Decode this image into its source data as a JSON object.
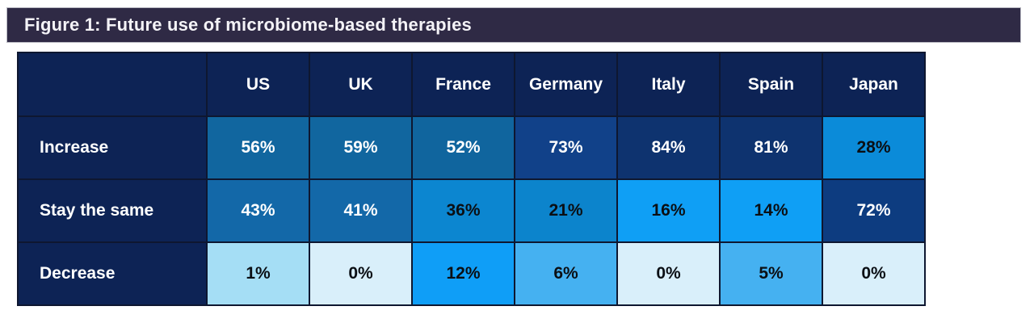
{
  "figure": {
    "title": "Figure 1: Future use of microbiome-based therapies"
  },
  "colors": {
    "title_bar_bg": "#2f2a45",
    "title_bar_border": "#b9b9c2",
    "title_text": "#f4f3f7",
    "table_header_bg": "#0d2355",
    "grid_line": "#0e1730",
    "value_text_light": "#ffffff",
    "value_text_dark": "#0b0f14",
    "page_bg": "#ffffff"
  },
  "chart_data": {
    "type": "heatmap",
    "title": "Figure 1: Future use of microbiome-based therapies",
    "unit": "%",
    "legend": "none",
    "columns": [
      "US",
      "UK",
      "France",
      "Germany",
      "Italy",
      "Spain",
      "Japan"
    ],
    "rows": [
      "Increase",
      "Stay the same",
      "Decrease"
    ],
    "values": [
      [
        56,
        59,
        52,
        73,
        84,
        81,
        28
      ],
      [
        43,
        41,
        36,
        21,
        16,
        14,
        72
      ],
      [
        1,
        0,
        12,
        6,
        0,
        5,
        0
      ]
    ],
    "color_scale": {
      "low_value_color": "#d9effa",
      "high_value_color": "#0e336f",
      "note": "darker blue = higher percentage"
    },
    "cells": [
      [
        {
          "label": "56%",
          "bg": "#11669f",
          "fg": "#ffffff"
        },
        {
          "label": "59%",
          "bg": "#11669f",
          "fg": "#ffffff"
        },
        {
          "label": "52%",
          "bg": "#10659e",
          "fg": "#ffffff"
        },
        {
          "label": "73%",
          "bg": "#114189",
          "fg": "#ffffff"
        },
        {
          "label": "84%",
          "bg": "#0e336f",
          "fg": "#ffffff"
        },
        {
          "label": "81%",
          "bg": "#0e336f",
          "fg": "#ffffff"
        },
        {
          "label": "28%",
          "bg": "#0b8bd9",
          "fg": "#0b0f14"
        }
      ],
      [
        {
          "label": "43%",
          "bg": "#1368a8",
          "fg": "#ffffff"
        },
        {
          "label": "41%",
          "bg": "#1368a8",
          "fg": "#ffffff"
        },
        {
          "label": "36%",
          "bg": "#0c86d0",
          "fg": "#0b0f14"
        },
        {
          "label": "21%",
          "bg": "#0c84cc",
          "fg": "#0b0f14"
        },
        {
          "label": "16%",
          "bg": "#0f9ff5",
          "fg": "#0b0f14"
        },
        {
          "label": "14%",
          "bg": "#0f9ff5",
          "fg": "#0b0f14"
        },
        {
          "label": "72%",
          "bg": "#0d3c80",
          "fg": "#ffffff"
        }
      ],
      [
        {
          "label": "1%",
          "bg": "#a5def5",
          "fg": "#0b0f14"
        },
        {
          "label": "0%",
          "bg": "#d9effa",
          "fg": "#0b0f14"
        },
        {
          "label": "12%",
          "bg": "#0f9ef7",
          "fg": "#0b0f14"
        },
        {
          "label": "6%",
          "bg": "#45b1f1",
          "fg": "#0b0f14"
        },
        {
          "label": "0%",
          "bg": "#d9effa",
          "fg": "#0b0f14"
        },
        {
          "label": "5%",
          "bg": "#45b1f1",
          "fg": "#0b0f14"
        },
        {
          "label": "0%",
          "bg": "#d9effa",
          "fg": "#0b0f14"
        }
      ]
    ]
  }
}
